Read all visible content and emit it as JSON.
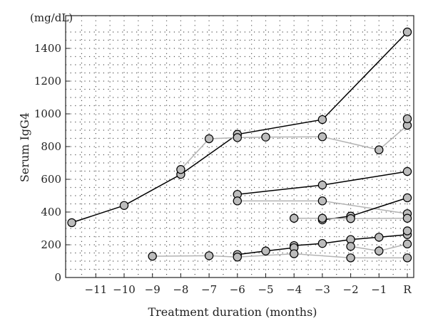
{
  "chart_data": {
    "type": "line",
    "unit_label": "(mg/dL)",
    "xlabel": "Treatment duration (months)",
    "ylabel": "Serum IgG4",
    "x_ticks": [
      {
        "x": -11,
        "label": "−11"
      },
      {
        "x": -10,
        "label": "−10"
      },
      {
        "x": -9,
        "label": "−9"
      },
      {
        "x": -8,
        "label": "−8"
      },
      {
        "x": -7,
        "label": "−7"
      },
      {
        "x": -6,
        "label": "−6"
      },
      {
        "x": -5,
        "label": "−5"
      },
      {
        "x": -4,
        "label": "−4"
      },
      {
        "x": -3,
        "label": "−3"
      },
      {
        "x": -2,
        "label": "−2"
      },
      {
        "x": -1,
        "label": "−1"
      },
      {
        "x": 0,
        "label": "R"
      }
    ],
    "y_ticks": [
      0,
      200,
      400,
      600,
      800,
      1000,
      1200,
      1400
    ],
    "xlim": [
      -11.85,
      0
    ],
    "ylim": [
      0,
      1500
    ],
    "grid": true,
    "colors": {
      "dark_line": "#000000",
      "light_line": "#b3b3b3",
      "marker_fill": "#bcbcbc",
      "marker_edge": "#000000",
      "grid_dot": "#555555"
    },
    "series": [
      {
        "color": "dark",
        "points": [
          [
            -11.85,
            335
          ],
          [
            -10,
            440
          ],
          [
            -8,
            630
          ],
          [
            -6,
            875
          ],
          [
            -3,
            965
          ],
          [
            0,
            1500
          ]
        ]
      },
      {
        "color": "light",
        "points": [
          [
            -8,
            660
          ],
          [
            -7,
            848
          ],
          [
            -6,
            855
          ],
          [
            -5,
            858
          ],
          [
            -3,
            860
          ],
          [
            -1,
            780
          ],
          [
            0,
            930
          ]
        ]
      },
      {
        "color": "dark",
        "points": [
          [
            -6,
            508
          ],
          [
            -3,
            565
          ],
          [
            0,
            648
          ]
        ]
      },
      {
        "color": "light",
        "points": [
          [
            -6,
            468
          ],
          [
            -3,
            468
          ],
          [
            0,
            390
          ]
        ]
      },
      {
        "color": "dark",
        "points": [
          [
            -3,
            352
          ],
          [
            -2,
            375
          ],
          [
            0,
            487
          ]
        ]
      },
      {
        "color": "light",
        "points": [
          [
            -4,
            362
          ],
          [
            -3,
            362
          ],
          [
            -2,
            360
          ],
          [
            0,
            362
          ]
        ]
      },
      {
        "color": "dark",
        "points": [
          [
            -4,
            195
          ],
          [
            -3,
            208
          ],
          [
            -2,
            232
          ],
          [
            -1,
            246
          ],
          [
            0,
            262
          ]
        ]
      },
      {
        "color": "dark",
        "points": [
          [
            -6,
            140
          ],
          [
            -5,
            162
          ],
          [
            -4,
            182
          ]
        ]
      },
      {
        "color": "light",
        "points": [
          [
            -2,
            190
          ],
          [
            -1,
            162
          ],
          [
            0,
            205
          ]
        ]
      },
      {
        "color": "light",
        "points": [
          [
            -9,
            130
          ],
          [
            -7,
            133
          ],
          [
            -6,
            125
          ],
          [
            -4,
            145
          ],
          [
            -2,
            120
          ],
          [
            0,
            120
          ]
        ]
      },
      {
        "color": "light",
        "points": [
          [
            0,
            970
          ]
        ]
      },
      {
        "color": "light",
        "points": [
          [
            0,
            285
          ]
        ]
      }
    ]
  }
}
